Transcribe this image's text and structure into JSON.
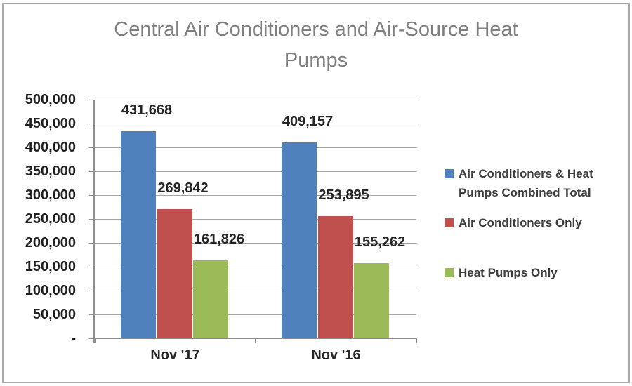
{
  "chart_data": {
    "type": "bar",
    "title": "Central Air Conditioners and Air-Source Heat Pumps",
    "title_lines": [
      "Central Air Conditioners and Air-Source Heat",
      "Pumps"
    ],
    "categories": [
      "Nov '17",
      "Nov '16"
    ],
    "series": [
      {
        "name": "Air Conditioners & Heat Pumps Combined Total",
        "color": "#4f81bd",
        "values": [
          431668,
          409157
        ],
        "labels": [
          "431,668",
          "409,157"
        ]
      },
      {
        "name": "Air Conditioners Only",
        "color": "#c0504d",
        "values": [
          269842,
          253895
        ],
        "labels": [
          "269,842",
          "253,895"
        ]
      },
      {
        "name": "Heat Pumps Only",
        "color": "#9bbb59",
        "values": [
          161826,
          155262
        ],
        "labels": [
          "161,826",
          "155,262"
        ]
      }
    ],
    "y_axis": {
      "min": 0,
      "max": 500000,
      "step": 50000,
      "tick_labels": [
        "-",
        "50,000",
        "100,000",
        "150,000",
        "200,000",
        "250,000",
        "300,000",
        "350,000",
        "400,000",
        "450,000",
        "500,000"
      ]
    },
    "ylim": [
      0,
      500000
    ],
    "grid": true,
    "legend_position": "right",
    "colors": {
      "gridline": "#a6a6a6",
      "axis": "#8c8c8c",
      "title_text": "#7f7f7f",
      "label_text": "#262626",
      "frame_border": "#a9a9a9"
    }
  }
}
